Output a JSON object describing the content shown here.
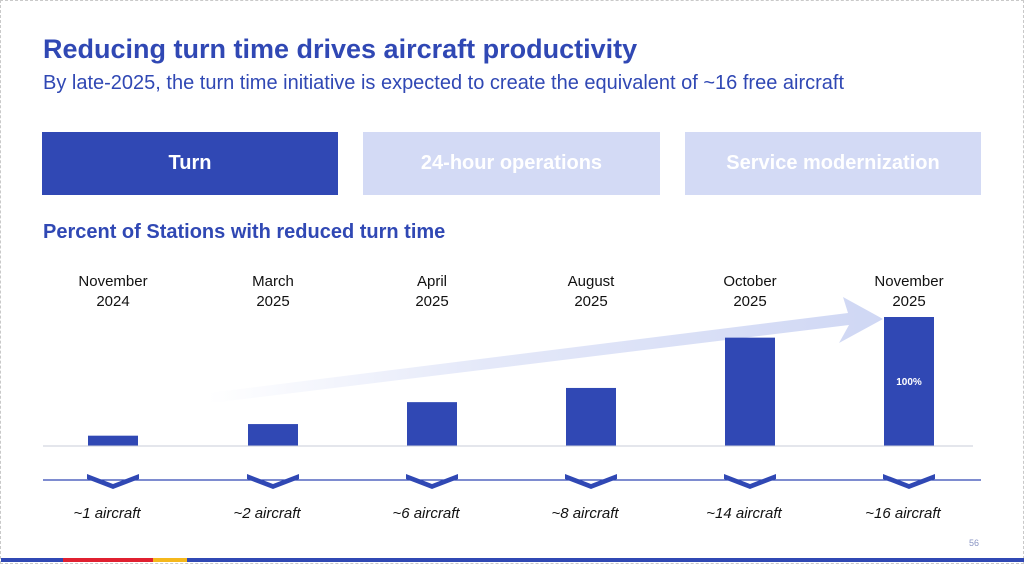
{
  "header": {
    "title": "Reducing turn time drives aircraft productivity",
    "subtitle": "By late-2025, the turn time initiative is expected to create the equivalent of ~16 free aircraft"
  },
  "tabs": [
    {
      "label": "Turn",
      "active": true
    },
    {
      "label": "24-hour operations",
      "active": false
    },
    {
      "label": "Service modernization",
      "active": false
    }
  ],
  "section_title": "Percent of Stations with reduced turn time",
  "chart_data": {
    "type": "bar",
    "categories": [
      [
        "November",
        "2024"
      ],
      [
        "March",
        "2025"
      ],
      [
        "April",
        "2025"
      ],
      [
        "August",
        "2025"
      ],
      [
        "October",
        "2025"
      ],
      [
        "November",
        "2025"
      ]
    ],
    "values": [
      8,
      17,
      34,
      45,
      84,
      100
    ],
    "ylim": [
      0,
      100
    ],
    "data_labels": [
      "",
      "",
      "",
      "",
      "",
      "100%"
    ],
    "aircraft_labels": [
      "~1 aircraft",
      "~2 aircraft",
      "~6 aircraft",
      "~8 aircraft",
      "~14 aircraft",
      "~16 aircraft"
    ],
    "bar_color": "#3048b4",
    "arrow_color": "#d3daf5"
  },
  "footer": {
    "page_number": "56",
    "stripe_colors": [
      "#3048b4",
      "#e02030",
      "#f5b81c",
      "#3048b4"
    ]
  }
}
